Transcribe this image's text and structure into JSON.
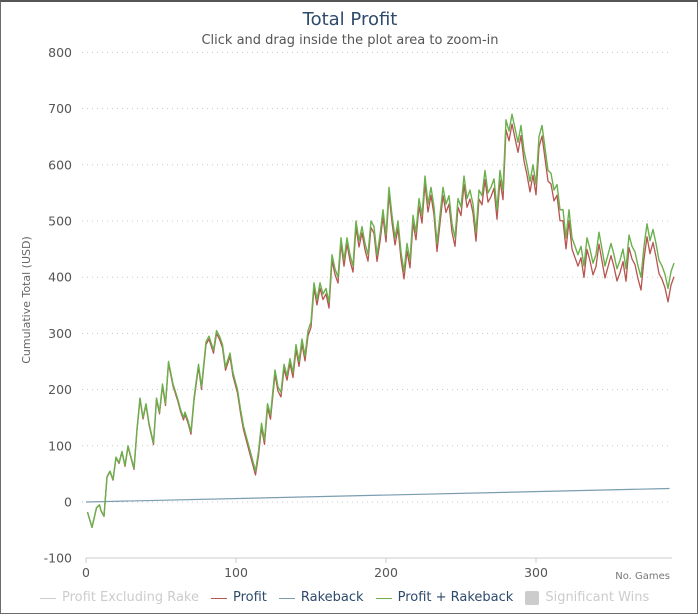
{
  "chart_data": {
    "type": "line",
    "title": "Total Profit",
    "subtitle": "Click and drag inside the plot area to zoom-in",
    "xlabel": "",
    "ylabel": "Cumulative Total (USD)",
    "xlim": [
      0,
      392
    ],
    "ylim": [
      -100,
      800
    ],
    "x_ticks": [
      "0",
      "100",
      "200",
      "300"
    ],
    "x_tick_values": [
      0,
      100,
      200,
      300
    ],
    "y_ticks": [
      "800",
      "700",
      "600",
      "500",
      "400",
      "300",
      "200",
      "100",
      "0",
      "-100"
    ],
    "y_tick_values": [
      800,
      700,
      600,
      500,
      400,
      300,
      200,
      100,
      0,
      -100
    ],
    "grid": true,
    "legend_position": "bottom",
    "x_axis_note": "No. Games",
    "profit_plus_rakeback": [
      [
        1,
        -18
      ],
      [
        4,
        -45
      ],
      [
        7,
        -10
      ],
      [
        9,
        -5
      ],
      [
        10,
        -15
      ],
      [
        12,
        -25
      ],
      [
        14,
        45
      ],
      [
        16,
        55
      ],
      [
        18,
        40
      ],
      [
        20,
        80
      ],
      [
        22,
        70
      ],
      [
        24,
        90
      ],
      [
        26,
        65
      ],
      [
        28,
        100
      ],
      [
        30,
        80
      ],
      [
        32,
        60
      ],
      [
        34,
        130
      ],
      [
        36,
        185
      ],
      [
        38,
        150
      ],
      [
        40,
        175
      ],
      [
        42,
        140
      ],
      [
        45,
        105
      ],
      [
        47,
        185
      ],
      [
        49,
        160
      ],
      [
        51,
        210
      ],
      [
        53,
        175
      ],
      [
        55,
        250
      ],
      [
        58,
        210
      ],
      [
        61,
        185
      ],
      [
        63,
        165
      ],
      [
        65,
        150
      ],
      [
        66,
        160
      ],
      [
        68,
        145
      ],
      [
        70,
        125
      ],
      [
        72,
        185
      ],
      [
        75,
        245
      ],
      [
        77,
        205
      ],
      [
        80,
        285
      ],
      [
        82,
        295
      ],
      [
        85,
        270
      ],
      [
        87,
        305
      ],
      [
        89,
        295
      ],
      [
        91,
        280
      ],
      [
        93,
        240
      ],
      [
        96,
        265
      ],
      [
        98,
        230
      ],
      [
        101,
        200
      ],
      [
        103,
        165
      ],
      [
        105,
        135
      ],
      [
        107,
        115
      ],
      [
        110,
        85
      ],
      [
        113,
        55
      ],
      [
        115,
        90
      ],
      [
        117,
        140
      ],
      [
        119,
        110
      ],
      [
        121,
        175
      ],
      [
        123,
        155
      ],
      [
        126,
        235
      ],
      [
        128,
        205
      ],
      [
        130,
        195
      ],
      [
        132,
        245
      ],
      [
        134,
        225
      ],
      [
        136,
        255
      ],
      [
        138,
        230
      ],
      [
        140,
        280
      ],
      [
        142,
        250
      ],
      [
        144,
        290
      ],
      [
        146,
        260
      ],
      [
        148,
        305
      ],
      [
        150,
        320
      ],
      [
        152,
        390
      ],
      [
        154,
        360
      ],
      [
        156,
        390
      ],
      [
        158,
        370
      ],
      [
        160,
        380
      ],
      [
        162,
        355
      ],
      [
        164,
        440
      ],
      [
        166,
        415
      ],
      [
        168,
        400
      ],
      [
        170,
        470
      ],
      [
        172,
        430
      ],
      [
        174,
        470
      ],
      [
        176,
        440
      ],
      [
        178,
        420
      ],
      [
        180,
        500
      ],
      [
        182,
        465
      ],
      [
        184,
        490
      ],
      [
        186,
        460
      ],
      [
        188,
        440
      ],
      [
        190,
        500
      ],
      [
        192,
        490
      ],
      [
        194,
        440
      ],
      [
        196,
        475
      ],
      [
        198,
        520
      ],
      [
        200,
        475
      ],
      [
        202,
        560
      ],
      [
        204,
        510
      ],
      [
        206,
        470
      ],
      [
        208,
        500
      ],
      [
        210,
        445
      ],
      [
        212,
        410
      ],
      [
        214,
        460
      ],
      [
        216,
        430
      ],
      [
        218,
        510
      ],
      [
        220,
        480
      ],
      [
        222,
        540
      ],
      [
        224,
        510
      ],
      [
        226,
        580
      ],
      [
        228,
        530
      ],
      [
        230,
        560
      ],
      [
        232,
        525
      ],
      [
        234,
        460
      ],
      [
        236,
        510
      ],
      [
        238,
        560
      ],
      [
        240,
        530
      ],
      [
        242,
        545
      ],
      [
        244,
        495
      ],
      [
        246,
        470
      ],
      [
        248,
        540
      ],
      [
        250,
        525
      ],
      [
        252,
        580
      ],
      [
        254,
        540
      ],
      [
        256,
        555
      ],
      [
        258,
        530
      ],
      [
        260,
        480
      ],
      [
        262,
        555
      ],
      [
        264,
        545
      ],
      [
        266,
        590
      ],
      [
        268,
        550
      ],
      [
        270,
        560
      ],
      [
        272,
        575
      ],
      [
        274,
        520
      ],
      [
        276,
        590
      ],
      [
        278,
        555
      ],
      [
        280,
        680
      ],
      [
        282,
        660
      ],
      [
        284,
        690
      ],
      [
        286,
        665
      ],
      [
        288,
        640
      ],
      [
        290,
        670
      ],
      [
        292,
        625
      ],
      [
        294,
        600
      ],
      [
        296,
        570
      ],
      [
        298,
        600
      ],
      [
        300,
        565
      ],
      [
        302,
        650
      ],
      [
        304,
        670
      ],
      [
        306,
        630
      ],
      [
        308,
        590
      ],
      [
        310,
        585
      ],
      [
        312,
        555
      ],
      [
        314,
        565
      ],
      [
        316,
        520
      ],
      [
        318,
        520
      ],
      [
        320,
        470
      ],
      [
        322,
        520
      ],
      [
        324,
        470
      ],
      [
        326,
        455
      ],
      [
        328,
        440
      ],
      [
        330,
        455
      ],
      [
        332,
        420
      ],
      [
        334,
        470
      ],
      [
        336,
        450
      ],
      [
        338,
        425
      ],
      [
        340,
        440
      ],
      [
        342,
        480
      ],
      [
        344,
        450
      ],
      [
        346,
        420
      ],
      [
        348,
        440
      ],
      [
        350,
        460
      ],
      [
        352,
        440
      ],
      [
        354,
        415
      ],
      [
        356,
        430
      ],
      [
        358,
        450
      ],
      [
        360,
        415
      ],
      [
        362,
        475
      ],
      [
        364,
        455
      ],
      [
        366,
        445
      ],
      [
        368,
        420
      ],
      [
        370,
        400
      ],
      [
        372,
        455
      ],
      [
        374,
        495
      ],
      [
        376,
        465
      ],
      [
        378,
        485
      ],
      [
        380,
        460
      ],
      [
        382,
        430
      ],
      [
        384,
        420
      ],
      [
        386,
        405
      ],
      [
        388,
        380
      ],
      [
        390,
        410
      ],
      [
        392,
        425
      ]
    ],
    "rakeback": [
      [
        0,
        0
      ],
      [
        389,
        24
      ]
    ],
    "series": [
      {
        "name": "Profit Excluding Rake",
        "color": "#cccccc",
        "visible": false
      },
      {
        "name": "Profit",
        "color": "#b85450",
        "visible": true
      },
      {
        "name": "Rakeback",
        "color": "#7a9db0",
        "visible": true
      },
      {
        "name": "Profit + Rakeback",
        "color": "#6ab04c",
        "visible": true
      },
      {
        "name": "Significant Wins",
        "color": "#cccccc",
        "visible": false
      }
    ]
  }
}
